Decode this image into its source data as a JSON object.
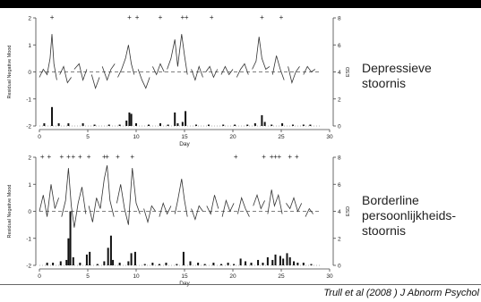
{
  "chart_data": [
    {
      "type": "line",
      "label": [
        "Depressieve",
        "stoornis"
      ],
      "ylabel": "Residual Negative Mood",
      "y2label": "ESD",
      "xlabel": "Day",
      "xlim": [
        0,
        30
      ],
      "ylim": [
        -2,
        2
      ],
      "y2lim": [
        0,
        8
      ],
      "xticks": [
        "0",
        "5",
        "10",
        "15",
        "20",
        "25",
        "30"
      ],
      "yticks": [
        "-2",
        "-1",
        "0",
        "1",
        "2"
      ],
      "y2ticks": [
        "0",
        "2",
        "4",
        "6",
        "8"
      ],
      "reference_line": 0,
      "markers": [
        1.3,
        9.3,
        10.1,
        12.5,
        14.8,
        15.2,
        17.8,
        23,
        25
      ],
      "marker_symbol": "+",
      "series": [
        {
          "role": "mood",
          "segments": [
            [
              [
                0.0,
                -0.2
              ],
              [
                0.4,
                0.1
              ],
              [
                0.8,
                -0.1
              ],
              [
                1.1,
                0.5
              ],
              [
                1.3,
                1.4
              ],
              [
                1.5,
                0.3
              ],
              [
                1.8,
                -0.3
              ]
            ],
            [
              [
                2.1,
                -0.1
              ],
              [
                2.5,
                0.2
              ],
              [
                2.9,
                -0.4
              ],
              [
                3.3,
                -0.2
              ]
            ],
            [
              [
                3.6,
                0.1
              ],
              [
                4.1,
                0.3
              ],
              [
                4.5,
                -0.3
              ],
              [
                4.9,
                0.1
              ]
            ],
            [
              [
                5.4,
                -0.1
              ],
              [
                5.8,
                -0.6
              ],
              [
                6.2,
                -0.2
              ]
            ],
            [
              [
                6.5,
                0.2
              ],
              [
                7.0,
                -0.3
              ],
              [
                7.4,
                0.1
              ],
              [
                7.8,
                0.3
              ]
            ],
            [
              [
                8.1,
                -0.2
              ],
              [
                8.5,
                0.1
              ],
              [
                8.9,
                0.5
              ],
              [
                9.2,
                1.0
              ],
              [
                9.5,
                0.3
              ],
              [
                9.8,
                -0.1
              ]
            ],
            [
              [
                10.2,
                0.1
              ],
              [
                10.6,
                -0.3
              ],
              [
                11.0,
                -0.6
              ],
              [
                11.4,
                -0.2
              ]
            ],
            [
              [
                11.7,
                0.2
              ],
              [
                12.1,
                -0.1
              ],
              [
                12.5,
                0.3
              ],
              [
                12.9,
                0.0
              ]
            ],
            [
              [
                13.2,
                0.1
              ],
              [
                13.6,
                0.5
              ],
              [
                14.0,
                1.2
              ],
              [
                14.3,
                0.2
              ],
              [
                14.7,
                1.4
              ],
              [
                15.0,
                0.6
              ],
              [
                15.3,
                -0.1
              ]
            ],
            [
              [
                15.7,
                0.1
              ],
              [
                16.1,
                -0.3
              ],
              [
                16.5,
                0.2
              ],
              [
                16.9,
                -0.2
              ]
            ],
            [
              [
                17.2,
                0.0
              ],
              [
                17.6,
                0.2
              ],
              [
                18.0,
                -0.2
              ],
              [
                18.4,
                0.1
              ]
            ],
            [
              [
                18.8,
                -0.1
              ],
              [
                19.2,
                0.2
              ],
              [
                19.6,
                -0.1
              ],
              [
                20.0,
                0.1
              ]
            ],
            [
              [
                20.4,
                -0.2
              ],
              [
                20.8,
                0.1
              ],
              [
                21.2,
                0.3
              ],
              [
                21.6,
                -0.1
              ]
            ],
            [
              [
                22.0,
                0.1
              ],
              [
                22.4,
                0.4
              ],
              [
                22.7,
                1.3
              ],
              [
                23.0,
                0.5
              ],
              [
                23.4,
                0.1
              ],
              [
                23.8,
                0.2
              ]
            ],
            [
              [
                24.1,
                -0.1
              ],
              [
                24.5,
                0.6
              ],
              [
                24.9,
                0.1
              ],
              [
                25.3,
                -0.3
              ]
            ],
            [
              [
                25.7,
                0.2
              ],
              [
                26.1,
                -0.4
              ],
              [
                26.5,
                0.0
              ],
              [
                26.9,
                0.2
              ]
            ],
            [
              [
                27.3,
                -0.1
              ],
              [
                27.7,
                0.2
              ],
              [
                28.1,
                0.0
              ],
              [
                28.5,
                0.1
              ]
            ]
          ]
        },
        {
          "role": "esd_bars",
          "bars": [
            [
              0.5,
              0.2
            ],
            [
              1.3,
              1.4
            ],
            [
              2.0,
              0.2
            ],
            [
              3.0,
              0.2
            ],
            [
              4.5,
              0.2
            ],
            [
              5.7,
              0.1
            ],
            [
              7.2,
              0.1
            ],
            [
              8.3,
              0.1
            ],
            [
              9.0,
              0.4
            ],
            [
              9.3,
              1.0
            ],
            [
              9.5,
              0.9
            ],
            [
              10.0,
              0.2
            ],
            [
              11.3,
              0.1
            ],
            [
              12.5,
              0.2
            ],
            [
              13.3,
              0.1
            ],
            [
              14.0,
              1.0
            ],
            [
              14.3,
              0.2
            ],
            [
              14.8,
              0.3
            ],
            [
              15.1,
              1.1
            ],
            [
              16.2,
              0.1
            ],
            [
              17.5,
              0.1
            ],
            [
              19.0,
              0.1
            ],
            [
              20.2,
              0.1
            ],
            [
              21.5,
              0.1
            ],
            [
              22.3,
              0.2
            ],
            [
              23.0,
              0.8
            ],
            [
              23.3,
              0.3
            ],
            [
              24.0,
              0.1
            ],
            [
              25.1,
              0.2
            ],
            [
              26.2,
              0.1
            ],
            [
              27.3,
              0.1
            ],
            [
              28.0,
              0.1
            ]
          ]
        }
      ]
    },
    {
      "type": "line",
      "label": [
        "Borderline",
        "persoonlijkheids-",
        "stoornis"
      ],
      "ylabel": "Residual Negative Mood",
      "y2label": "ESD",
      "xlabel": "Day",
      "xlim": [
        0,
        30
      ],
      "ylim": [
        -2,
        2
      ],
      "y2lim": [
        0,
        8
      ],
      "xticks": [
        "0",
        "5",
        "10",
        "15",
        "20",
        "25",
        "30"
      ],
      "yticks": [
        "-2",
        "-1",
        "0",
        "1",
        "2"
      ],
      "y2ticks": [
        "0",
        "2",
        "4",
        "6",
        "8"
      ],
      "reference_line": 0,
      "markers": [
        0.3,
        1.0,
        2.3,
        3.0,
        3.5,
        4.2,
        5.1,
        6.7,
        7.0,
        8.1,
        9.6,
        20.3,
        23.2,
        24.0,
        24.4,
        24.8,
        25.9,
        26.6
      ],
      "marker_symbol": "+",
      "series": [
        {
          "role": "mood",
          "segments": [
            [
              [
                0.0,
                0.0
              ],
              [
                0.4,
                0.6
              ],
              [
                0.8,
                -0.2
              ],
              [
                1.2,
                1.0
              ],
              [
                1.6,
                0.1
              ],
              [
                2.0,
                0.5
              ]
            ],
            [
              [
                2.3,
                -0.2
              ],
              [
                2.7,
                0.4
              ],
              [
                3.0,
                1.6
              ],
              [
                3.3,
                0.2
              ],
              [
                3.6,
                -0.6
              ],
              [
                4.0,
                0.3
              ],
              [
                4.4,
                0.9
              ],
              [
                4.8,
                -0.1
              ]
            ],
            [
              [
                5.1,
                0.2
              ],
              [
                5.5,
                -0.4
              ],
              [
                5.9,
                0.5
              ],
              [
                6.3,
                0.1
              ],
              [
                6.7,
                1.2
              ],
              [
                7.0,
                1.7
              ],
              [
                7.3,
                0.4
              ],
              [
                7.7,
                -0.2
              ]
            ],
            [
              [
                8.0,
                0.3
              ],
              [
                8.4,
                1.0
              ],
              [
                8.8,
                0.1
              ],
              [
                9.2,
                -0.5
              ],
              [
                9.6,
                1.6
              ],
              [
                10.0,
                0.3
              ],
              [
                10.4,
                -0.1
              ]
            ],
            [
              [
                10.8,
                0.1
              ],
              [
                11.2,
                -0.4
              ],
              [
                11.6,
                0.2
              ],
              [
                12.0,
                0.0
              ]
            ],
            [
              [
                12.4,
                -0.2
              ],
              [
                12.8,
                0.3
              ],
              [
                13.2,
                -0.1
              ],
              [
                13.6,
                0.2
              ]
            ],
            [
              [
                14.0,
                -0.1
              ],
              [
                14.3,
                0.4
              ],
              [
                14.7,
                1.2
              ],
              [
                15.0,
                0.4
              ],
              [
                15.3,
                -0.2
              ]
            ],
            [
              [
                15.7,
                0.1
              ],
              [
                16.1,
                -0.3
              ],
              [
                16.5,
                0.2
              ],
              [
                16.9,
                0.0
              ]
            ],
            [
              [
                17.3,
                0.2
              ],
              [
                17.7,
                -0.1
              ],
              [
                18.1,
                0.6
              ],
              [
                18.5,
                0.1
              ]
            ],
            [
              [
                18.9,
                -0.2
              ],
              [
                19.3,
                0.4
              ],
              [
                19.7,
                0.0
              ],
              [
                20.1,
                0.3
              ]
            ],
            [
              [
                20.5,
                -0.1
              ],
              [
                20.9,
                0.5
              ],
              [
                21.3,
                0.1
              ],
              [
                21.7,
                -0.2
              ]
            ],
            [
              [
                22.1,
                0.2
              ],
              [
                22.5,
                0.6
              ],
              [
                22.9,
                0.1
              ],
              [
                23.3,
                0.4
              ]
            ],
            [
              [
                23.6,
                -0.1
              ],
              [
                24.0,
                0.8
              ],
              [
                24.3,
                0.2
              ],
              [
                24.7,
                0.6
              ],
              [
                25.1,
                -0.1
              ]
            ],
            [
              [
                25.5,
                0.3
              ],
              [
                25.9,
                0.1
              ],
              [
                26.3,
                0.5
              ],
              [
                26.7,
                0.0
              ],
              [
                27.1,
                0.3
              ]
            ],
            [
              [
                27.5,
                -0.2
              ],
              [
                27.9,
                0.1
              ],
              [
                28.3,
                -0.1
              ]
            ]
          ]
        },
        {
          "role": "esd_bars",
          "bars": [
            [
              0.8,
              0.2
            ],
            [
              1.4,
              0.2
            ],
            [
              2.2,
              0.3
            ],
            [
              2.8,
              0.4
            ],
            [
              3.0,
              2.0
            ],
            [
              3.2,
              4.0
            ],
            [
              3.5,
              0.6
            ],
            [
              4.2,
              0.2
            ],
            [
              4.9,
              0.8
            ],
            [
              5.2,
              1.0
            ],
            [
              6.0,
              0.1
            ],
            [
              6.7,
              0.3
            ],
            [
              7.1,
              1.3
            ],
            [
              7.4,
              2.2
            ],
            [
              7.6,
              0.4
            ],
            [
              8.3,
              0.2
            ],
            [
              9.2,
              0.3
            ],
            [
              9.5,
              0.9
            ],
            [
              9.9,
              1.0
            ],
            [
              10.9,
              0.1
            ],
            [
              11.7,
              0.2
            ],
            [
              12.4,
              0.1
            ],
            [
              13.1,
              0.2
            ],
            [
              14.2,
              0.1
            ],
            [
              14.9,
              1.0
            ],
            [
              15.6,
              0.3
            ],
            [
              16.4,
              0.2
            ],
            [
              17.1,
              0.1
            ],
            [
              18.0,
              0.2
            ],
            [
              18.8,
              0.1
            ],
            [
              19.5,
              0.2
            ],
            [
              20.1,
              0.1
            ],
            [
              20.8,
              0.5
            ],
            [
              21.3,
              0.3
            ],
            [
              21.9,
              0.2
            ],
            [
              22.6,
              0.4
            ],
            [
              23.1,
              0.2
            ],
            [
              23.6,
              0.6
            ],
            [
              24.1,
              0.4
            ],
            [
              24.4,
              0.8
            ],
            [
              24.9,
              0.7
            ],
            [
              25.2,
              0.5
            ],
            [
              25.6,
              0.9
            ],
            [
              25.9,
              0.6
            ],
            [
              26.3,
              0.3
            ],
            [
              26.7,
              0.2
            ],
            [
              27.3,
              0.2
            ],
            [
              28.1,
              0.1
            ]
          ]
        }
      ]
    }
  ],
  "citation": "Trull et al (2008 ) J Abnorm Psychol"
}
